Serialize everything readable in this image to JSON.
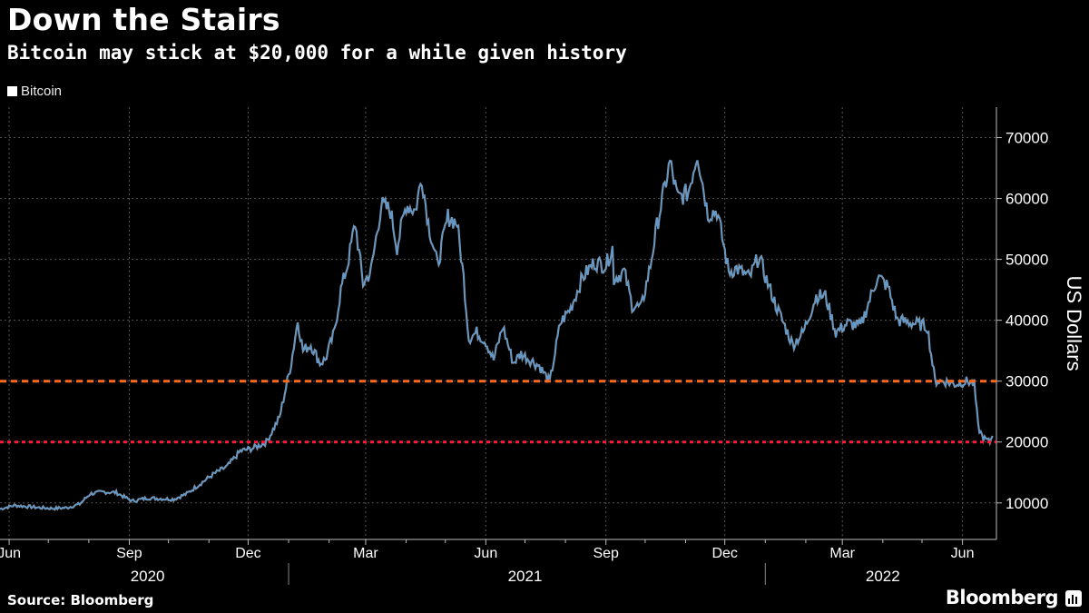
{
  "header": {
    "title": "Down the Stairs",
    "subtitle": "Bitcoin may stick at $20,000 for a while given history"
  },
  "footer": {
    "source": "Source: Bloomberg",
    "brand": "Bloomberg"
  },
  "chart_data": {
    "type": "line",
    "title": "Down the Stairs",
    "subtitle": "Bitcoin may stick at $20,000 for a while given history",
    "ylabel": "US Dollars",
    "xlabel": "",
    "ylim": [
      4000,
      75000
    ],
    "xlim": [
      "2020-05-25",
      "2022-06-27"
    ],
    "y_ticks": [
      10000,
      20000,
      30000,
      40000,
      50000,
      60000,
      70000
    ],
    "y_axis_side": "right",
    "grid": true,
    "legend": {
      "position": "top-left",
      "entries": [
        "Bitcoin"
      ]
    },
    "colors": {
      "background": "#000000",
      "line": "#5b9bd5",
      "line_highlight": "#ffffff",
      "threshold_30k": "#ff6a1a",
      "threshold_20k": "#ff1a3c",
      "grid": "#555555"
    },
    "x_month_ticks": [
      {
        "date": "2020-06-01",
        "label": "Jun"
      },
      {
        "date": "2020-07-01",
        "label": ""
      },
      {
        "date": "2020-08-01",
        "label": ""
      },
      {
        "date": "2020-09-01",
        "label": "Sep"
      },
      {
        "date": "2020-10-01",
        "label": ""
      },
      {
        "date": "2020-11-01",
        "label": ""
      },
      {
        "date": "2020-12-01",
        "label": "Dec"
      },
      {
        "date": "2021-01-01",
        "label": ""
      },
      {
        "date": "2021-02-01",
        "label": ""
      },
      {
        "date": "2021-03-01",
        "label": "Mar"
      },
      {
        "date": "2021-04-01",
        "label": ""
      },
      {
        "date": "2021-05-01",
        "label": ""
      },
      {
        "date": "2021-06-01",
        "label": "Jun"
      },
      {
        "date": "2021-07-01",
        "label": ""
      },
      {
        "date": "2021-08-01",
        "label": ""
      },
      {
        "date": "2021-09-01",
        "label": "Sep"
      },
      {
        "date": "2021-10-01",
        "label": ""
      },
      {
        "date": "2021-11-01",
        "label": ""
      },
      {
        "date": "2021-12-01",
        "label": "Dec"
      },
      {
        "date": "2022-01-01",
        "label": ""
      },
      {
        "date": "2022-02-01",
        "label": ""
      },
      {
        "date": "2022-03-01",
        "label": "Mar"
      },
      {
        "date": "2022-04-01",
        "label": ""
      },
      {
        "date": "2022-05-01",
        "label": ""
      },
      {
        "date": "2022-06-01",
        "label": "Jun"
      }
    ],
    "x_year_labels": [
      {
        "label": "2020",
        "center": "2020-09-15"
      },
      {
        "label": "2021",
        "center": "2021-07-01"
      },
      {
        "label": "2022",
        "center": "2022-04-01"
      }
    ],
    "year_separators": [
      "2021-01-01",
      "2022-01-01"
    ],
    "reference_lines": [
      {
        "y": 30000,
        "style": "dashed",
        "color": "#ff6a1a"
      },
      {
        "y": 20000,
        "style": "dotted",
        "color": "#ff1a3c"
      }
    ],
    "series": [
      {
        "name": "Bitcoin",
        "x": [
          "2020-05-25",
          "2020-06-05",
          "2020-06-15",
          "2020-06-25",
          "2020-07-05",
          "2020-07-15",
          "2020-07-25",
          "2020-08-02",
          "2020-08-12",
          "2020-08-22",
          "2020-09-03",
          "2020-09-15",
          "2020-09-25",
          "2020-10-05",
          "2020-10-15",
          "2020-10-25",
          "2020-11-05",
          "2020-11-15",
          "2020-11-25",
          "2020-12-05",
          "2020-12-15",
          "2020-12-25",
          "2021-01-03",
          "2021-01-08",
          "2021-01-12",
          "2021-01-18",
          "2021-01-25",
          "2021-01-29",
          "2021-02-05",
          "2021-02-10",
          "2021-02-15",
          "2021-02-21",
          "2021-02-27",
          "2021-03-05",
          "2021-03-13",
          "2021-03-20",
          "2021-03-25",
          "2021-04-01",
          "2021-04-08",
          "2021-04-13",
          "2021-04-18",
          "2021-04-25",
          "2021-05-03",
          "2021-05-10",
          "2021-05-15",
          "2021-05-19",
          "2021-05-25",
          "2021-06-01",
          "2021-06-07",
          "2021-06-14",
          "2021-06-22",
          "2021-06-28",
          "2021-07-05",
          "2021-07-12",
          "2021-07-20",
          "2021-07-28",
          "2021-08-05",
          "2021-08-14",
          "2021-08-23",
          "2021-09-01",
          "2021-09-06",
          "2021-09-07",
          "2021-09-15",
          "2021-09-21",
          "2021-09-28",
          "2021-10-05",
          "2021-10-10",
          "2021-10-20",
          "2021-10-26",
          "2021-11-03",
          "2021-11-10",
          "2021-11-18",
          "2021-11-25",
          "2021-12-04",
          "2021-12-10",
          "2021-12-20",
          "2021-12-27",
          "2022-01-03",
          "2022-01-10",
          "2022-01-22",
          "2022-01-30",
          "2022-02-09",
          "2022-02-16",
          "2022-02-24",
          "2022-03-05",
          "2022-03-15",
          "2022-03-28",
          "2022-04-05",
          "2022-04-12",
          "2022-04-25",
          "2022-05-05",
          "2022-05-11",
          "2022-05-18",
          "2022-05-26",
          "2022-06-05",
          "2022-06-10",
          "2022-06-13",
          "2022-06-16",
          "2022-06-18",
          "2022-06-22",
          "2022-06-24"
        ],
        "values": [
          9000,
          9600,
          9400,
          9200,
          9100,
          9200,
          9800,
          11500,
          11800,
          11700,
          10300,
          10800,
          10700,
          10600,
          11500,
          13100,
          14800,
          16000,
          18500,
          19000,
          20000,
          24000,
          33000,
          40000,
          35000,
          36000,
          33000,
          33500,
          38000,
          45000,
          49000,
          56000,
          46000,
          48000,
          59000,
          58000,
          52000,
          59000,
          58000,
          63500,
          56000,
          49000,
          57000,
          56000,
          47000,
          37000,
          38000,
          36500,
          33500,
          39000,
          33000,
          34500,
          33500,
          32500,
          29800,
          39500,
          42000,
          47000,
          49500,
          49000,
          52000,
          46800,
          48000,
          42500,
          42000,
          49000,
          55500,
          66000,
          60000,
          61000,
          67500,
          57500,
          58000,
          48000,
          48500,
          47000,
          50500,
          46000,
          42000,
          36000,
          38000,
          44000,
          44000,
          38000,
          39500,
          39000,
          47200,
          45500,
          40000,
          39500,
          39000,
          30000,
          30000,
          29500,
          30000,
          29500,
          22500,
          21000,
          20500,
          20000,
          21000
        ]
      }
    ]
  }
}
